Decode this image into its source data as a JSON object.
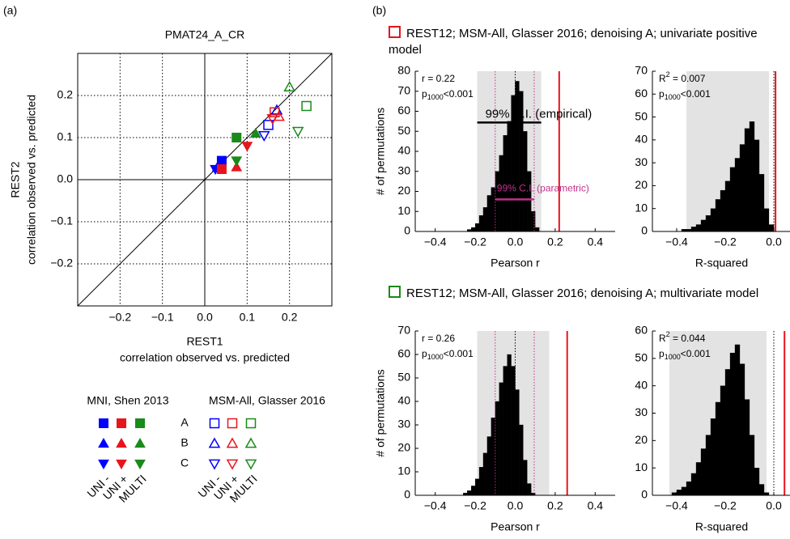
{
  "panel_labels": [
    "(a)",
    "(b)"
  ],
  "legend": {
    "groups": [
      "MNI, Shen 2013",
      "MSM-All, Glasser 2016"
    ],
    "rows": [
      "A",
      "B",
      "C"
    ],
    "columns": [
      "UNI -",
      "UNI +",
      "MULTI"
    ]
  },
  "sections": [
    {
      "title": "REST12; MSM-All, Glasser 2016; denoising A; univariate positive model",
      "color": "#e8141c"
    },
    {
      "title": "REST12; MSM-All, Glasser 2016; denoising A; multivariate model",
      "color": "#1a8a1a"
    }
  ],
  "chart_data": [
    {
      "type": "scatter",
      "title": "PMAT24_A_CR",
      "xlabel": [
        "REST1",
        "correlation observed vs. predicted"
      ],
      "ylabel": [
        "REST2",
        "correlation observed vs. predicted"
      ],
      "xlim": [
        -0.3,
        0.3
      ],
      "ylim": [
        -0.3,
        0.3
      ],
      "xticks": [
        {
          "value": -0.2,
          "label": "−0.2"
        },
        {
          "value": -0.1,
          "label": "−0.1"
        },
        {
          "value": 0,
          "label": "0.0"
        },
        0.1,
        0.2
      ],
      "yticks": [
        {
          "value": -0.2,
          "label": "−0.2"
        },
        {
          "value": -0.1,
          "label": "−0.1"
        },
        {
          "value": 0,
          "label": "0.0"
        },
        0.1,
        0.2
      ],
      "grid": true,
      "markers": [
        "square",
        "triangle-up",
        "triangle-down"
      ],
      "series": [
        {
          "color": "#0000ff",
          "filled": true,
          "x": [
            0.04,
            0.03,
            0.025
          ],
          "values": [
            0.045,
            0.03,
            0.025
          ]
        },
        {
          "color": "#e8141c",
          "filled": true,
          "x": [
            0.04,
            0.075,
            0.1
          ],
          "values": [
            0.025,
            0.03,
            0.08
          ]
        },
        {
          "color": "#1a8a1a",
          "filled": true,
          "x": [
            0.075,
            0.12,
            0.075
          ],
          "values": [
            0.1,
            0.11,
            0.045
          ]
        },
        {
          "color": "#0000ff",
          "filled": false,
          "x": [
            0.15,
            0.17,
            0.14
          ],
          "values": [
            0.13,
            0.165,
            0.105
          ]
        },
        {
          "color": "#e8141c",
          "filled": false,
          "x": [
            0.165,
            0.175,
            0.16
          ],
          "values": [
            0.16,
            0.15,
            0.145
          ]
        },
        {
          "color": "#1a8a1a",
          "filled": false,
          "x": [
            0.24,
            0.2,
            0.22
          ],
          "values": [
            0.175,
            0.22,
            0.115
          ]
        }
      ]
    },
    {
      "type": "histogram",
      "xlabel": "Pearson r",
      "ylabel": "# of permutations",
      "color": "#000000",
      "xlim": [
        -0.5,
        0.5
      ],
      "ylim": [
        0,
        80
      ],
      "xticks": [
        {
          "value": -0.4,
          "label": "−0.4"
        },
        {
          "value": -0.2,
          "label": "−0.2"
        },
        {
          "value": 0,
          "label": "0.0"
        },
        0.2,
        0.4
      ],
      "yticks": [
        0,
        10,
        20,
        30,
        40,
        50,
        60,
        70,
        80
      ],
      "bins": [
        -0.24,
        -0.22,
        -0.2,
        -0.18,
        -0.16,
        -0.14,
        -0.12,
        -0.1,
        -0.08,
        -0.06,
        -0.04,
        -0.02,
        0,
        0.02,
        0.04,
        0.06,
        0.08,
        0.1,
        0.12
      ],
      "counts": [
        1,
        2,
        4,
        8,
        12,
        18,
        22,
        30,
        38,
        48,
        55,
        68,
        75,
        70,
        50,
        30,
        10,
        2
      ],
      "observed": 0.22,
      "ci_empirical": [
        -0.19,
        0.13
      ],
      "ci_parametric": [
        -0.1,
        0.095
      ],
      "stats": [
        [
          {
            "text": "r = 0.22"
          }
        ],
        [
          {
            "text": "p"
          },
          {
            "sub": "1000"
          },
          {
            "text": "<0.001"
          }
        ]
      ],
      "ci_labels": {
        "empirical": "99% C.I. (empirical)",
        "parametric": "99% C.I. (parametric)"
      }
    },
    {
      "type": "histogram",
      "xlabel": "R-squared",
      "color": "#000000",
      "xlim": [
        -0.5,
        0.25
      ],
      "ylim": [
        0,
        70
      ],
      "xticks": [
        {
          "value": -0.4,
          "label": "−0.4"
        },
        {
          "value": -0.2,
          "label": "−0.2"
        },
        {
          "value": 0,
          "label": "0.0"
        }
      ],
      "yticks": [
        0,
        10,
        20,
        30,
        40,
        50,
        60,
        70
      ],
      "bins": [
        -0.38,
        -0.36,
        -0.34,
        -0.32,
        -0.3,
        -0.28,
        -0.26,
        -0.24,
        -0.22,
        -0.2,
        -0.18,
        -0.16,
        -0.14,
        -0.12,
        -0.1,
        -0.08,
        -0.06,
        -0.04,
        -0.02,
        0
      ],
      "counts": [
        1,
        1,
        2,
        3,
        5,
        7,
        10,
        14,
        18,
        22,
        28,
        32,
        38,
        45,
        48,
        40,
        25,
        10,
        3
      ],
      "observed": 0.007,
      "ci_empirical": [
        -0.36,
        -0.02
      ],
      "stats": [
        [
          {
            "text": "R"
          },
          {
            "sup": "2"
          },
          {
            "text": " = 0.007"
          }
        ],
        [
          {
            "text": "p"
          },
          {
            "sub": "1000"
          },
          {
            "text": "<0.001"
          }
        ]
      ]
    },
    {
      "type": "histogram",
      "xlabel": "Pearson r",
      "ylabel": "# of permutations",
      "color": "#000000",
      "xlim": [
        -0.5,
        0.5
      ],
      "ylim": [
        0,
        70
      ],
      "xticks": [
        {
          "value": -0.4,
          "label": "−0.4"
        },
        {
          "value": -0.2,
          "label": "−0.2"
        },
        {
          "value": 0,
          "label": "0.0"
        },
        0.2,
        0.4
      ],
      "yticks": [
        0,
        10,
        20,
        30,
        40,
        50,
        60,
        70
      ],
      "bins": [
        -0.26,
        -0.24,
        -0.22,
        -0.2,
        -0.18,
        -0.16,
        -0.14,
        -0.12,
        -0.1,
        -0.08,
        -0.06,
        -0.04,
        -0.02,
        0,
        0.02,
        0.04,
        0.06,
        0.08,
        0.1
      ],
      "counts": [
        1,
        2,
        4,
        7,
        12,
        18,
        25,
        33,
        40,
        48,
        55,
        60,
        55,
        45,
        30,
        15,
        5,
        1
      ],
      "observed": 0.26,
      "ci_empirical": [
        -0.19,
        0.17
      ],
      "ci_parametric": [
        -0.1,
        0.095
      ],
      "stats": [
        [
          {
            "text": "r = 0.26"
          }
        ],
        [
          {
            "text": "p"
          },
          {
            "sub": "1000"
          },
          {
            "text": "<0.001"
          }
        ]
      ]
    },
    {
      "type": "histogram",
      "xlabel": "R-squared",
      "color": "#000000",
      "xlim": [
        -0.5,
        0.25
      ],
      "ylim": [
        0,
        60
      ],
      "xticks": [
        {
          "value": -0.4,
          "label": "−0.4"
        },
        {
          "value": -0.2,
          "label": "−0.2"
        },
        {
          "value": 0,
          "label": "0.0"
        }
      ],
      "yticks": [
        0,
        10,
        20,
        30,
        40,
        50,
        60
      ],
      "bins": [
        -0.42,
        -0.4,
        -0.38,
        -0.36,
        -0.34,
        -0.32,
        -0.3,
        -0.28,
        -0.26,
        -0.24,
        -0.22,
        -0.2,
        -0.18,
        -0.16,
        -0.14,
        -0.12,
        -0.1,
        -0.08,
        -0.06,
        -0.04,
        -0.02
      ],
      "counts": [
        1,
        2,
        3,
        5,
        8,
        12,
        17,
        22,
        28,
        34,
        40,
        46,
        52,
        55,
        48,
        35,
        22,
        10,
        4,
        1
      ],
      "observed": 0.044,
      "ci_empirical": [
        -0.43,
        -0.03
      ],
      "stats": [
        [
          {
            "text": "R"
          },
          {
            "sup": "2"
          },
          {
            "text": " = 0.044"
          }
        ],
        [
          {
            "text": "p"
          },
          {
            "sub": "1000"
          },
          {
            "text": "<0.001"
          }
        ]
      ]
    }
  ]
}
